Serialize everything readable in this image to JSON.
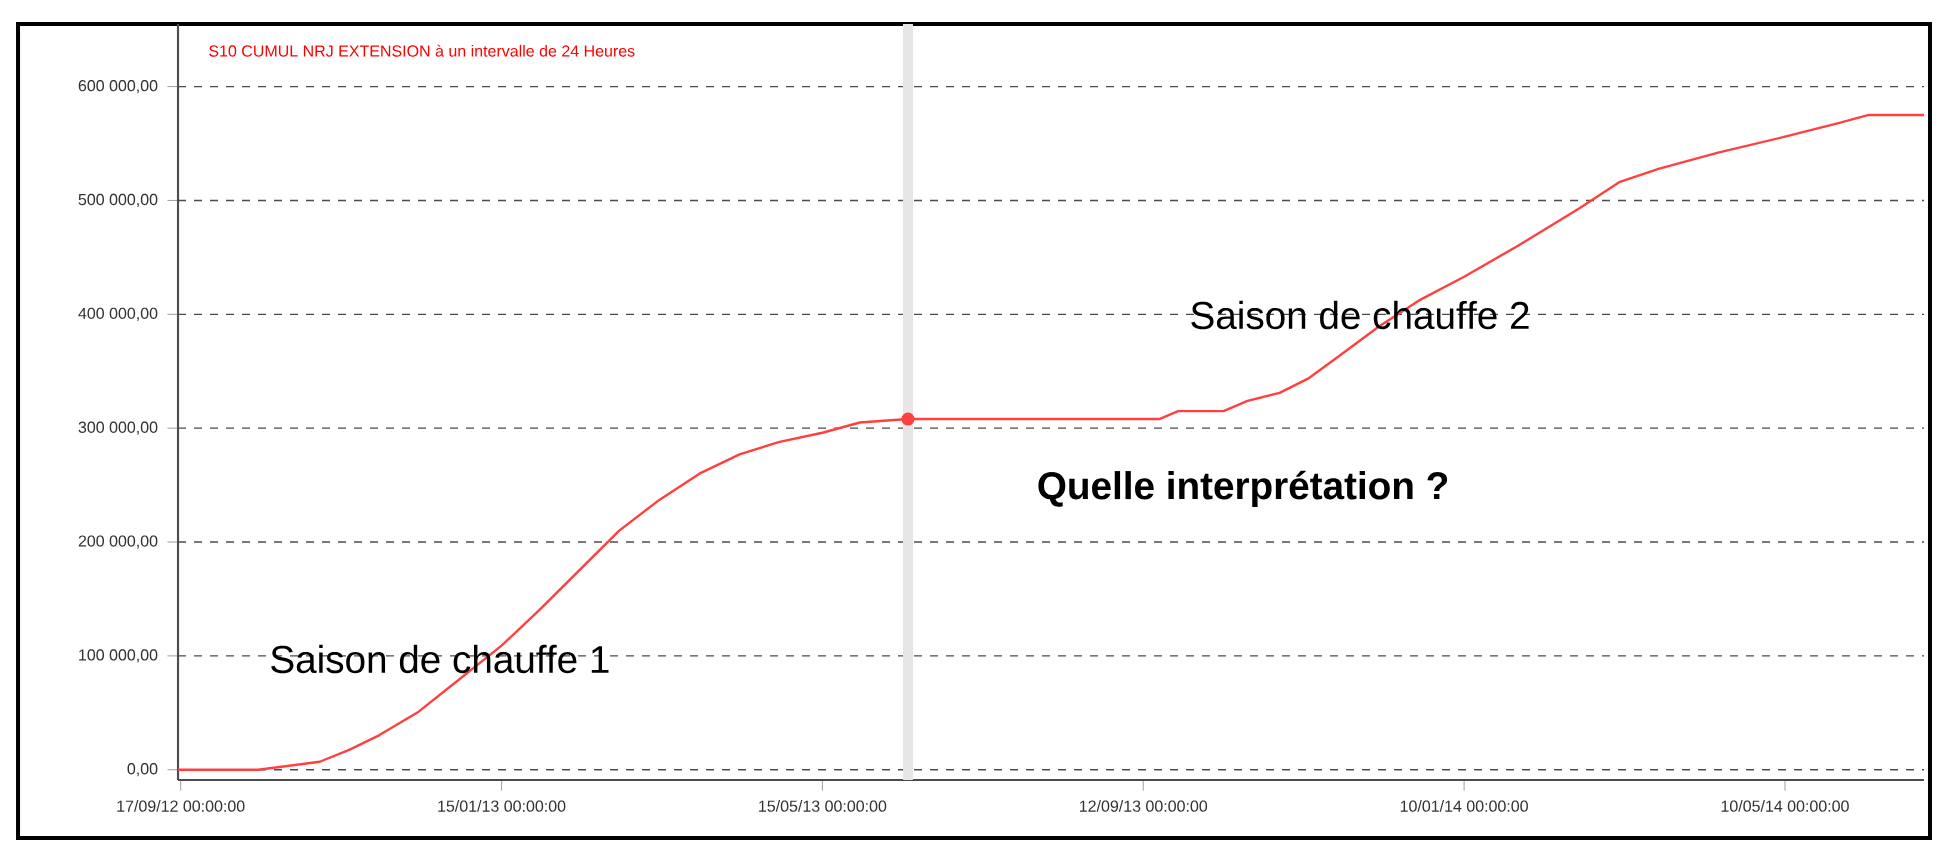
{
  "chart_data": {
    "type": "line",
    "title": "S10 CUMUL NRJ EXTENSION à un intervalle de 24 Heures",
    "annotations": [
      "Saison de chauffe 1",
      "Quelle interprétation ?",
      "Saison de chauffe 2"
    ],
    "xlim": [
      "2012-09-16",
      "2014-07-01"
    ],
    "xticks": [
      {
        "value": "2012-09-17",
        "label": "17/09/12 00:00:00"
      },
      {
        "value": "2013-01-15",
        "label": "15/01/13 00:00:00"
      },
      {
        "value": "2013-05-15",
        "label": "15/05/13 00:00:00"
      },
      {
        "value": "2013-09-12",
        "label": "12/09/13 00:00:00"
      },
      {
        "value": "2014-01-10",
        "label": "10/01/14 00:00:00"
      },
      {
        "value": "2014-05-10",
        "label": "10/05/14 00:00:00"
      }
    ],
    "ylim": [
      -9000,
      655000
    ],
    "yticks": [
      {
        "value": 0,
        "label": "0,00"
      },
      {
        "value": 100000,
        "label": "100 000,00"
      },
      {
        "value": 200000,
        "label": "200 000,00"
      },
      {
        "value": 300000,
        "label": "300 000,00"
      },
      {
        "value": 400000,
        "label": "400 000,00"
      },
      {
        "value": 500000,
        "label": "500 000,00"
      },
      {
        "value": 600000,
        "label": "600 000,00"
      }
    ],
    "grid": "y",
    "line_style": "solid",
    "ref_lines": [
      {
        "axis": "x",
        "value": "2013-06-16",
        "color": "#e6e6e6"
      }
    ],
    "series": [
      {
        "color": "#ff4040",
        "x": [
          "2012-09-16",
          "2012-10-16",
          "2012-11-08",
          "2012-11-19",
          "2012-11-30",
          "2012-12-15",
          "2012-12-30",
          "2013-01-15",
          "2013-01-29",
          "2013-02-13",
          "2013-02-28",
          "2013-03-15",
          "2013-03-30",
          "2013-04-14",
          "2013-04-29",
          "2013-05-15",
          "2013-05-29",
          "2013-06-16",
          "2013-09-18",
          "2013-09-25",
          "2013-10-12",
          "2013-10-21",
          "2013-11-02",
          "2013-11-13",
          "2013-11-24",
          "2013-12-09",
          "2013-12-24",
          "2014-01-10",
          "2014-01-30",
          "2014-02-22",
          "2014-03-09",
          "2014-03-24",
          "2014-04-15",
          "2014-05-10",
          "2014-05-30",
          "2014-06-10",
          "2014-07-01"
        ],
        "values": [
          0,
          0,
          7000,
          17500,
          30000,
          51000,
          79000,
          109000,
          140000,
          175000,
          210000,
          237000,
          260000,
          277000,
          288000,
          296000,
          305000,
          308000,
          308000,
          315000,
          315000,
          324000,
          331000,
          344000,
          363000,
          389000,
          412000,
          433000,
          460000,
          493000,
          516000,
          528000,
          542000,
          556000,
          568000,
          575000,
          575000
        ]
      },
      {
        "type": "scatter",
        "marker": "circle",
        "color": "#ff4040",
        "x": [
          "2013-06-16"
        ],
        "values": [
          308000
        ]
      }
    ]
  }
}
